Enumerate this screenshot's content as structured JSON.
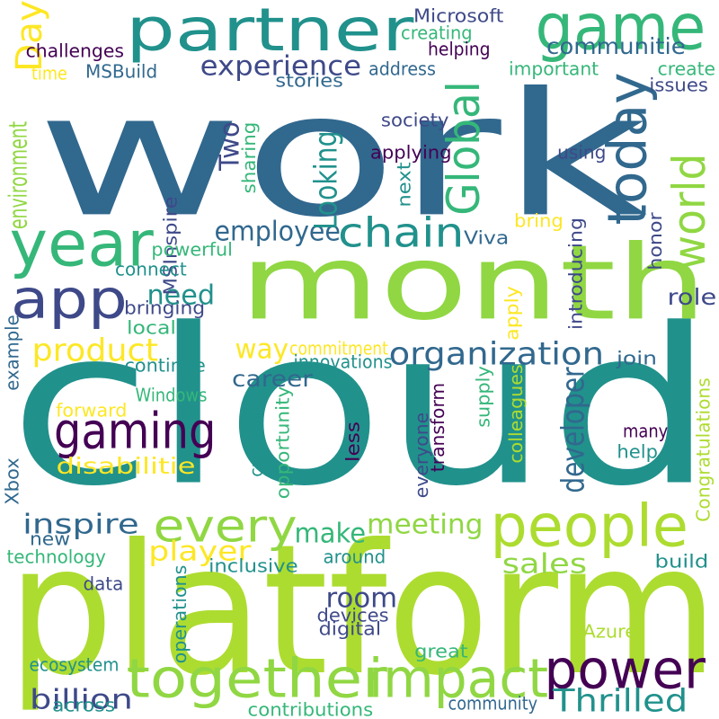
{
  "words": [
    {
      "text": "work",
      "color": "#31688e",
      "rot": 0
    },
    {
      "text": "cloud",
      "color": "#21918c",
      "rot": 0
    },
    {
      "text": "platform",
      "color": "#addc30",
      "rot": 0
    },
    {
      "text": "month",
      "color": "#90d743",
      "rot": 0
    },
    {
      "text": "partner",
      "color": "#21918c",
      "rot": 0
    },
    {
      "text": "game",
      "color": "#35b779",
      "rot": 0
    },
    {
      "text": "year",
      "color": "#35b779",
      "rot": 0
    },
    {
      "text": "app",
      "color": "#3e4989",
      "rot": 0
    },
    {
      "text": "people",
      "color": "#addc30",
      "rot": 0
    },
    {
      "text": "together",
      "color": "#90d743",
      "rot": 0
    },
    {
      "text": "impact",
      "color": "#90d743",
      "rot": 0
    },
    {
      "text": "power",
      "color": "#440154",
      "rot": 0
    },
    {
      "text": "gaming",
      "color": "#440154",
      "rot": 0
    },
    {
      "text": "every",
      "color": "#90d743",
      "rot": 0
    },
    {
      "text": "today",
      "color": "#31688e",
      "rot": 270
    },
    {
      "text": "world",
      "color": "#90d743",
      "rot": 270
    },
    {
      "text": "Global",
      "color": "#35b779",
      "rot": 270
    },
    {
      "text": "chain",
      "color": "#21918c",
      "rot": 0
    },
    {
      "text": "Day",
      "color": "#fde725",
      "rot": 270
    },
    {
      "text": "organization",
      "color": "#31688e",
      "rot": 0
    },
    {
      "text": "Thrilled",
      "color": "#21918c",
      "rot": 0
    },
    {
      "text": "product",
      "color": "#fde725",
      "rot": 0
    },
    {
      "text": "experience",
      "color": "#3e4989",
      "rot": 0
    },
    {
      "text": "communitie",
      "color": "#31688e",
      "rot": 0
    },
    {
      "text": "employee",
      "color": "#31688e",
      "rot": 0
    },
    {
      "text": "Looking",
      "color": "#21918c",
      "rot": 270
    },
    {
      "text": "Two",
      "color": "#3e4989",
      "rot": 270
    },
    {
      "text": "player",
      "color": "#fde725",
      "rot": 0
    },
    {
      "text": "meeting",
      "color": "#90d743",
      "rot": 0
    },
    {
      "text": "make",
      "color": "#35b779",
      "rot": 0
    },
    {
      "text": "inspire",
      "color": "#31688e",
      "rot": 0
    },
    {
      "text": "way",
      "color": "#fde725",
      "rot": 0
    },
    {
      "text": "room",
      "color": "#3e4989",
      "rot": 0
    },
    {
      "text": "sales",
      "color": "#90d743",
      "rot": 0
    },
    {
      "text": "billion",
      "color": "#3e4989",
      "rot": 0
    },
    {
      "text": "developer",
      "color": "#31688e",
      "rot": 270
    },
    {
      "text": "environment",
      "color": "#90d743",
      "rot": 270
    },
    {
      "text": "need",
      "color": "#21918c",
      "rot": 0
    },
    {
      "text": "career",
      "color": "#31688e",
      "rot": 0
    },
    {
      "text": "disabilitie",
      "color": "#fde725",
      "rot": 0
    },
    {
      "text": "role",
      "color": "#3e4989",
      "rot": 0
    },
    {
      "text": "Microsoft",
      "color": "#3e4989",
      "rot": 0
    },
    {
      "text": "challenges",
      "color": "#440154",
      "rot": 0
    },
    {
      "text": "creating",
      "color": "#35b779",
      "rot": 0
    },
    {
      "text": "helping",
      "color": "#440154",
      "rot": 0
    },
    {
      "text": "MSBuild",
      "color": "#31688e",
      "rot": 0
    },
    {
      "text": "address",
      "color": "#31688e",
      "rot": 0
    },
    {
      "text": "important",
      "color": "#35b779",
      "rot": 0
    },
    {
      "text": "create",
      "color": "#35b779",
      "rot": 0
    },
    {
      "text": "issues",
      "color": "#3e4989",
      "rot": 0
    },
    {
      "text": "time",
      "color": "#fde725",
      "rot": 0
    },
    {
      "text": "stories",
      "color": "#31688e",
      "rot": 0
    },
    {
      "text": "society",
      "color": "#3e4989",
      "rot": 0
    },
    {
      "text": "applying",
      "color": "#440154",
      "rot": 0
    },
    {
      "text": "using",
      "color": "#3e4989",
      "rot": 0
    },
    {
      "text": "sharing",
      "color": "#35b779",
      "rot": 270
    },
    {
      "text": "MSInspire",
      "color": "#3e4989",
      "rot": 270
    },
    {
      "text": "next",
      "color": "#21918c",
      "rot": 270
    },
    {
      "text": "bring",
      "color": "#fde725",
      "rot": 0
    },
    {
      "text": "Viva",
      "color": "#31688e",
      "rot": 0
    },
    {
      "text": "powerful",
      "color": "#35b779",
      "rot": 0
    },
    {
      "text": "connect",
      "color": "#21918c",
      "rot": 0
    },
    {
      "text": "bringing",
      "color": "#3e4989",
      "rot": 0
    },
    {
      "text": "local",
      "color": "#35b779",
      "rot": 0
    },
    {
      "text": "introducing",
      "color": "#3e4989",
      "rot": 270
    },
    {
      "text": "honor",
      "color": "#3e4989",
      "rot": 270
    },
    {
      "text": "apply",
      "color": "#fde725",
      "rot": 270
    },
    {
      "text": "commitment",
      "color": "#fde725",
      "rot": 0
    },
    {
      "text": "innovations",
      "color": "#21918c",
      "rot": 0
    },
    {
      "text": "continue",
      "color": "#21918c",
      "rot": 0
    },
    {
      "text": "join",
      "color": "#31688e",
      "rot": 0
    },
    {
      "text": "example",
      "color": "#31688e",
      "rot": 270
    },
    {
      "text": "Windows",
      "color": "#35b779",
      "rot": 0
    },
    {
      "text": "forward",
      "color": "#fde725",
      "rot": 0
    },
    {
      "text": "customers",
      "color": "#21918c",
      "rot": 270
    },
    {
      "text": "opportunity",
      "color": "#35b779",
      "rot": 270
    },
    {
      "text": "less",
      "color": "#440154",
      "rot": 270
    },
    {
      "text": "everyone",
      "color": "#3e4989",
      "rot": 270
    },
    {
      "text": "transform",
      "color": "#440154",
      "rot": 270
    },
    {
      "text": "supply",
      "color": "#35b779",
      "rot": 270
    },
    {
      "text": "colleagues",
      "color": "#addc30",
      "rot": 270
    },
    {
      "text": "many",
      "color": "#440154",
      "rot": 0
    },
    {
      "text": "help",
      "color": "#21918c",
      "rot": 0
    },
    {
      "text": "Congratulations",
      "color": "#addc30",
      "rot": 270
    },
    {
      "text": "Xbox",
      "color": "#31688e",
      "rot": 270
    },
    {
      "text": "new",
      "color": "#31688e",
      "rot": 0
    },
    {
      "text": "technology",
      "color": "#35b779",
      "rot": 0
    },
    {
      "text": "inclusive",
      "color": "#21918c",
      "rot": 0
    },
    {
      "text": "around",
      "color": "#21918c",
      "rot": 0
    },
    {
      "text": "build",
      "color": "#21918c",
      "rot": 0
    },
    {
      "text": "data",
      "color": "#3e4989",
      "rot": 0
    },
    {
      "text": "devices",
      "color": "#3e4989",
      "rot": 0
    },
    {
      "text": "digital",
      "color": "#3e4989",
      "rot": 0
    },
    {
      "text": "operations",
      "color": "#21918c",
      "rot": 270
    },
    {
      "text": "Azure",
      "color": "#addc30",
      "rot": 0
    },
    {
      "text": "great",
      "color": "#35b779",
      "rot": 0
    },
    {
      "text": "ecosystem",
      "color": "#21918c",
      "rot": 0
    },
    {
      "text": "community",
      "color": "#31688e",
      "rot": 0
    },
    {
      "text": "across",
      "color": "#21918c",
      "rot": 0
    },
    {
      "text": "contributions",
      "color": "#35b779",
      "rot": 0
    }
  ]
}
